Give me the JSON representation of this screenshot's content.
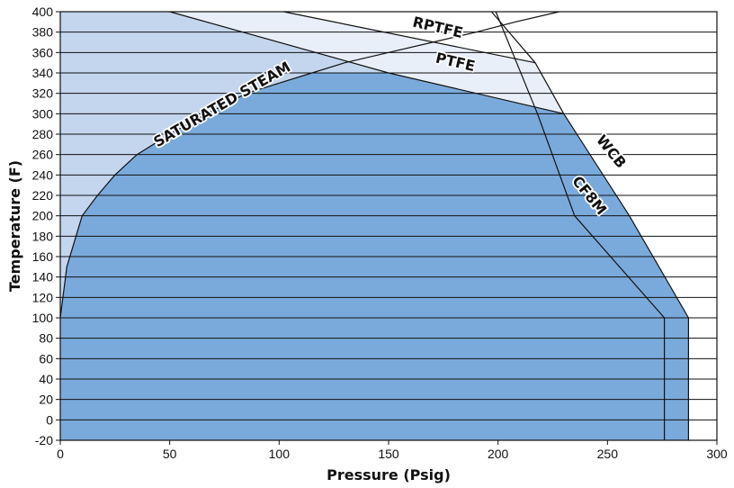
{
  "chart_data": {
    "type": "area",
    "title": "",
    "xlabel": "Pressure (Psig)",
    "ylabel": "Temperature (F)",
    "xlim": [
      0,
      300
    ],
    "ylim": [
      -20,
      400
    ],
    "x_ticks": [
      0,
      50,
      100,
      150,
      200,
      250,
      300
    ],
    "y_ticks": [
      -20,
      0,
      20,
      40,
      60,
      80,
      100,
      120,
      140,
      160,
      180,
      200,
      220,
      240,
      260,
      280,
      300,
      320,
      340,
      360,
      380,
      400
    ],
    "horizontal_grid": true,
    "vertical_grid": false,
    "colors": {
      "body_region": "#7aaadb",
      "ptfe_region": "#c4d6ee",
      "rptfe_region": "#e8eff9",
      "line": "#111111",
      "background": "#ffffff"
    },
    "series": [
      {
        "name": "WCB",
        "x": [
          287,
          287,
          260,
          230,
          217,
          197
        ],
        "y": [
          -20,
          100,
          200,
          300,
          350,
          400
        ]
      },
      {
        "name": "CF8M",
        "x": [
          276,
          276,
          235,
          218,
          199
        ],
        "y": [
          -20,
          100,
          200,
          300,
          400
        ]
      },
      {
        "name": "SATURATED STEAM",
        "x": [
          0,
          3,
          10,
          17,
          25,
          35,
          50,
          67,
          85,
          100,
          115,
          130,
          150,
          170,
          190,
          208,
          228
        ],
        "y": [
          100,
          150,
          200,
          220,
          240,
          260,
          280,
          300,
          320,
          330,
          340,
          350,
          360,
          370,
          380,
          390,
          400
        ]
      },
      {
        "name": "PTFE",
        "x": [
          50,
          150,
          230
        ],
        "y": [
          400,
          340,
          300
        ]
      },
      {
        "name": "RPTFE",
        "x": [
          102,
          217
        ],
        "y": [
          400,
          350
        ]
      }
    ],
    "labels": [
      {
        "text": "RPTFE",
        "x": 172,
        "y": 380,
        "angle": 13
      },
      {
        "text": "PTFE",
        "x": 180,
        "y": 346,
        "angle": 13
      },
      {
        "text": "SATURATED STEAM",
        "x": 75,
        "y": 305,
        "angle": -30
      },
      {
        "text": "WCB",
        "x": 250,
        "y": 260,
        "angle": 51
      },
      {
        "text": "CF8M",
        "x": 240,
        "y": 217,
        "angle": 51
      }
    ]
  }
}
